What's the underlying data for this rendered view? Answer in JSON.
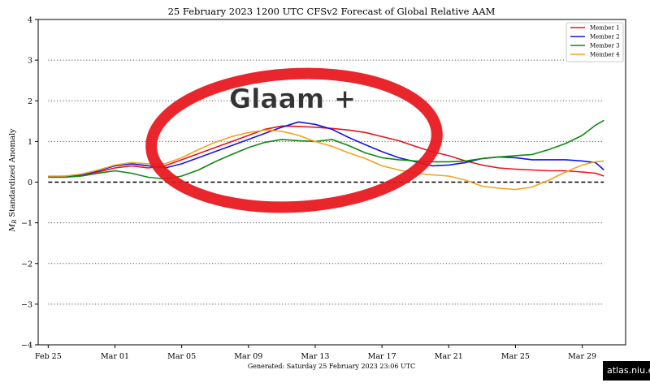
{
  "chart_data": {
    "type": "line",
    "title": "25  February  2023 1200 UTC   CFSv2 Forecast of Global Relative AAM",
    "ylabel": "M_R Standardized Anomaly",
    "ylabel_main": "M",
    "ylabel_sub": "R",
    "ylabel_rest": " Standardized Anomaly",
    "xlabel": "",
    "footer": "Generated: Saturday  25  February  2023  23:06 UTC",
    "ylim": [
      -4,
      4
    ],
    "xlim": [
      -0.6,
      34.6
    ],
    "yticks": [
      -4,
      -3,
      -2,
      -1,
      0,
      1,
      2,
      3,
      4
    ],
    "ytick_labels": [
      "−4",
      "−3",
      "−2",
      "−1",
      "0",
      "1",
      "2",
      "3",
      "4"
    ],
    "xticks": [
      0,
      4,
      8,
      12,
      16,
      20,
      24,
      28,
      32
    ],
    "xtick_labels": [
      "Feb 25",
      "Mar 01",
      "Mar 05",
      "Mar 09",
      "Mar 13",
      "Mar 17",
      "Mar 21",
      "Mar 25",
      "Mar 29"
    ],
    "grid": "dotted horizontal",
    "zero_line": "dashed",
    "legend_position": "top-right",
    "series": [
      {
        "name": "Member 1",
        "color": "#e8141b",
        "x": [
          0,
          1,
          2,
          3,
          4,
          5,
          6,
          7,
          8,
          9,
          10,
          11,
          12,
          13,
          14,
          15,
          16,
          17,
          18,
          19,
          20,
          21,
          22,
          23,
          24,
          25,
          26,
          27,
          28,
          29,
          30,
          31,
          32,
          32.8,
          33.3
        ],
        "y": [
          0.13,
          0.15,
          0.18,
          0.25,
          0.35,
          0.4,
          0.35,
          0.4,
          0.55,
          0.7,
          0.85,
          1.0,
          1.15,
          1.3,
          1.38,
          1.37,
          1.35,
          1.32,
          1.28,
          1.22,
          1.12,
          1.02,
          0.88,
          0.75,
          0.65,
          0.52,
          0.42,
          0.35,
          0.32,
          0.3,
          0.28,
          0.28,
          0.25,
          0.22,
          0.15
        ]
      },
      {
        "name": "Member 2",
        "color": "#1414e6",
        "x": [
          0,
          1,
          2,
          3,
          4,
          5,
          6,
          7,
          8,
          9,
          10,
          11,
          12,
          13,
          14,
          15,
          16,
          17,
          18,
          19,
          20,
          21,
          22,
          23,
          24,
          25,
          26,
          27,
          28,
          29,
          30,
          31,
          32,
          32.8,
          33.3
        ],
        "y": [
          0.13,
          0.14,
          0.18,
          0.28,
          0.4,
          0.45,
          0.4,
          0.35,
          0.45,
          0.6,
          0.75,
          0.9,
          1.05,
          1.2,
          1.35,
          1.48,
          1.42,
          1.3,
          1.1,
          0.92,
          0.75,
          0.6,
          0.5,
          0.4,
          0.42,
          0.48,
          0.58,
          0.62,
          0.6,
          0.55,
          0.55,
          0.55,
          0.52,
          0.48,
          0.3
        ]
      },
      {
        "name": "Member 3",
        "color": "#118811",
        "x": [
          0,
          1,
          2,
          3,
          4,
          5,
          6,
          7,
          8,
          9,
          10,
          11,
          12,
          13,
          14,
          15,
          16,
          17,
          18,
          19,
          20,
          21,
          22,
          23,
          24,
          25,
          26,
          27,
          28,
          29,
          30,
          31,
          32,
          32.8,
          33.3
        ],
        "y": [
          0.12,
          0.12,
          0.15,
          0.22,
          0.28,
          0.22,
          0.12,
          0.08,
          0.15,
          0.3,
          0.5,
          0.68,
          0.85,
          0.98,
          1.05,
          1.02,
          1.0,
          1.05,
          0.9,
          0.72,
          0.6,
          0.55,
          0.52,
          0.5,
          0.5,
          0.52,
          0.58,
          0.62,
          0.65,
          0.68,
          0.8,
          0.95,
          1.15,
          1.4,
          1.52
        ]
      },
      {
        "name": "Member 4",
        "color": "#f5a21c",
        "x": [
          0,
          1,
          2,
          3,
          4,
          5,
          6,
          7,
          8,
          9,
          10,
          11,
          12,
          13,
          14,
          15,
          16,
          17,
          18,
          19,
          20,
          21,
          22,
          23,
          24,
          25,
          26,
          27,
          28,
          29,
          30,
          31,
          32,
          32.8,
          33.3
        ],
        "y": [
          0.15,
          0.15,
          0.2,
          0.3,
          0.42,
          0.48,
          0.45,
          0.45,
          0.6,
          0.8,
          0.98,
          1.12,
          1.22,
          1.28,
          1.25,
          1.15,
          1.0,
          0.88,
          0.72,
          0.58,
          0.4,
          0.3,
          0.22,
          0.18,
          0.15,
          0.05,
          -0.1,
          -0.15,
          -0.18,
          -0.12,
          0.05,
          0.25,
          0.42,
          0.5,
          0.52
        ]
      }
    ]
  },
  "annotation": {
    "text": "Glaam +",
    "color": "#e8141b"
  },
  "watermark": "atlas.niu.edu"
}
